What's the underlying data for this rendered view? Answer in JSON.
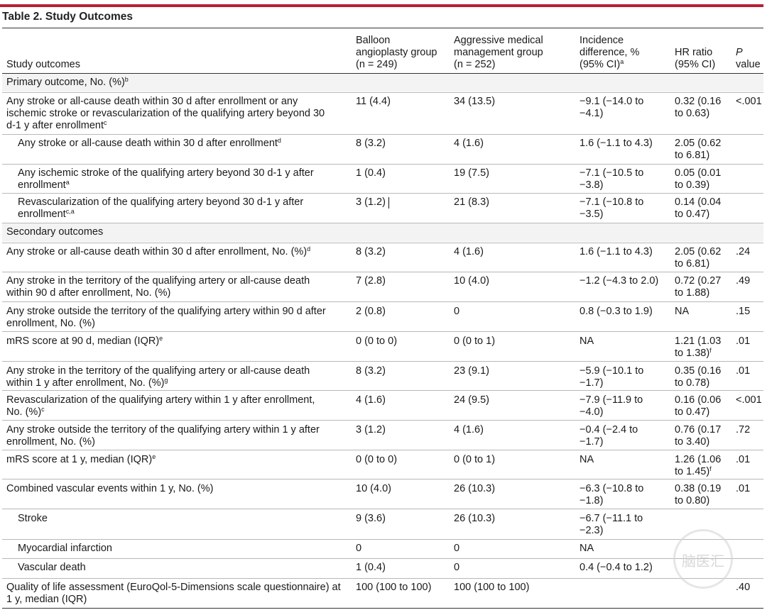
{
  "title": "Table 2. Study Outcomes",
  "headers": {
    "outcomes": "Study outcomes",
    "balloon_1": "Balloon",
    "balloon_2": "angioplasty group",
    "balloon_3": "(n = 249)",
    "aggr_1": "Aggressive medical",
    "aggr_2": "management group",
    "aggr_3": "(n = 252)",
    "inc_1": "Incidence",
    "inc_2": "difference, %",
    "inc_3": "(95% CI)",
    "inc_sup": "a",
    "hr_1": "HR ratio",
    "hr_2": "(95% CI)",
    "p_1": "P",
    "p_2": "value"
  },
  "rows": [
    {
      "outcome": [
        "Primary outcome, No. (%)"
      ],
      "sup": "b",
      "section": true
    },
    {
      "outcome": [
        "Any stroke or all-cause death within 30 d after enrollment or any",
        "ischemic stroke or revascularization of the qualifying artery beyond 30",
        "d-1 y after enrollment"
      ],
      "sup": "c",
      "balloon": "11 (4.4)",
      "aggr": "34 (13.5)",
      "inc": [
        "−9.1 (−14.0 to",
        "−4.1)"
      ],
      "hr": [
        "0.32 (0.16",
        "to 0.63)"
      ],
      "p": "<.001"
    },
    {
      "outcome": [
        "Any stroke or all-cause death within 30 d after enrollment"
      ],
      "sup": "d",
      "indent": true,
      "balloon": "8 (3.2)",
      "aggr": "4 (1.6)",
      "inc": [
        "1.6 (−1.1 to 4.3)"
      ],
      "hr": [
        "2.05 (0.62",
        "to 6.81)"
      ],
      "p": ""
    },
    {
      "outcome": [
        "Any ischemic stroke of the qualifying artery beyond 30 d-1 y after",
        "enrollment"
      ],
      "sup": "a",
      "indent": true,
      "balloon": "1 (0.4)",
      "aggr": "19 (7.5)",
      "inc": [
        "−7.1 (−10.5 to",
        "−3.8)"
      ],
      "hr": [
        "0.05 (0.01",
        "to 0.39)"
      ],
      "p": ""
    },
    {
      "outcome": [
        "Revascularization of the qualifying artery beyond 30 d-1 y after",
        "enrollment"
      ],
      "sup": "c,a",
      "indent": true,
      "balloon": "3 (1.2)",
      "aggr": "21 (8.3)",
      "inc": [
        "−7.1 (−10.8 to",
        "−3.5)"
      ],
      "hr": [
        "0.14 (0.04",
        "to 0.47)"
      ],
      "p": ""
    },
    {
      "outcome": [
        "Secondary outcomes"
      ],
      "sup": "",
      "section": true
    },
    {
      "outcome": [
        "Any stroke or all-cause death within 30 d after enrollment, No. (%)"
      ],
      "sup": "d",
      "balloon": "8 (3.2)",
      "aggr": "4 (1.6)",
      "inc": [
        "1.6 (−1.1 to 4.3)"
      ],
      "hr": [
        "2.05 (0.62",
        "to 6.81)"
      ],
      "p": ".24"
    },
    {
      "outcome": [
        "Any stroke in the territory of the qualifying artery or all-cause death",
        "within 90 d after enrollment, No. (%)"
      ],
      "sup": "",
      "balloon": "7 (2.8)",
      "aggr": "10 (4.0)",
      "inc": [
        "−1.2 (−4.3 to 2.0)"
      ],
      "hr": [
        "0.72 (0.27",
        "to 1.88)"
      ],
      "p": ".49"
    },
    {
      "outcome": [
        "Any stroke outside the territory of the qualifying artery within 90 d after",
        "enrollment, No. (%)"
      ],
      "sup": "",
      "balloon": "2 (0.8)",
      "aggr": "0",
      "inc": [
        "0.8 (−0.3 to 1.9)"
      ],
      "hr": [
        "NA"
      ],
      "p": ".15"
    },
    {
      "outcome": [
        "mRS score at 90 d, median (IQR)"
      ],
      "sup": "e",
      "balloon": "0 (0 to 0)",
      "aggr": "0 (0 to 1)",
      "inc": [
        "NA"
      ],
      "hr": [
        "1.21 (1.03",
        "to 1.38)"
      ],
      "hr_sup": "f",
      "p": ".01"
    },
    {
      "outcome": [
        "Any stroke in the territory of the qualifying artery or all-cause death",
        "within 1 y after enrollment, No. (%)"
      ],
      "sup": "g",
      "balloon": "8 (3.2)",
      "aggr": "23 (9.1)",
      "inc": [
        "−5.9 (−10.1 to",
        "−1.7)"
      ],
      "hr": [
        "0.35 (0.16",
        "to 0.78)"
      ],
      "p": ".01"
    },
    {
      "outcome": [
        "Revascularization of the qualifying artery within 1 y after enrollment,",
        "No. (%)"
      ],
      "sup": "c",
      "balloon": "4 (1.6)",
      "aggr": "24 (9.5)",
      "inc": [
        "−7.9 (−11.9 to",
        "−4.0)"
      ],
      "hr": [
        "0.16 (0.06",
        "to 0.47)"
      ],
      "p": "<.001"
    },
    {
      "outcome": [
        "Any stroke outside the territory of the qualifying artery within 1 y after",
        "enrollment, No. (%)"
      ],
      "sup": "",
      "balloon": "3 (1.2)",
      "aggr": "4 (1.6)",
      "inc": [
        "−0.4 (−2.4 to",
        "−1.7)"
      ],
      "hr": [
        "0.76 (0.17",
        "to 3.40)"
      ],
      "p": ".72"
    },
    {
      "outcome": [
        "mRS score at 1 y, median (IQR)"
      ],
      "sup": "e",
      "balloon": "0 (0 to 0)",
      "aggr": "0 (0 to 1)",
      "inc": [
        "NA"
      ],
      "hr": [
        "1.26 (1.06",
        "to 1.45)"
      ],
      "hr_sup": "f",
      "p": ".01"
    },
    {
      "outcome": [
        "Combined vascular events within 1 y, No. (%)"
      ],
      "sup": "",
      "balloon": "10 (4.0)",
      "aggr": "26 (10.3)",
      "inc": [
        "−6.3 (−10.8 to",
        "−1.8)"
      ],
      "hr": [
        "0.38 (0.19",
        "to 0.80)"
      ],
      "p": ".01"
    },
    {
      "outcome": [
        "Stroke"
      ],
      "sup": "",
      "indent": true,
      "balloon": "9 (3.6)",
      "aggr": "26 (10.3)",
      "inc": [
        "−6.7 (−11.1 to",
        "−2.3)"
      ],
      "hr": [
        ""
      ],
      "p": ""
    },
    {
      "outcome": [
        "Myocardial infarction"
      ],
      "sup": "",
      "indent": true,
      "balloon": "0",
      "aggr": "0",
      "inc": [
        "NA"
      ],
      "hr": [
        ""
      ],
      "p": ""
    },
    {
      "outcome": [
        "Vascular death"
      ],
      "sup": "",
      "indent": true,
      "balloon": "1 (0.4)",
      "aggr": "0",
      "inc": [
        "0.4 (−0.4 to 1.2)"
      ],
      "hr": [
        ""
      ],
      "p": ""
    },
    {
      "outcome": [
        "Quality of life assessment (EuroQol-5-Dimensions scale questionnaire) at",
        "1 y, median (IQR)"
      ],
      "sup": "",
      "balloon": "100 (100 to 100)",
      "aggr": "100 (100 to 100)",
      "inc": [
        ""
      ],
      "hr": [
        ""
      ],
      "p": ".40"
    }
  ],
  "watermark": "脑医汇"
}
